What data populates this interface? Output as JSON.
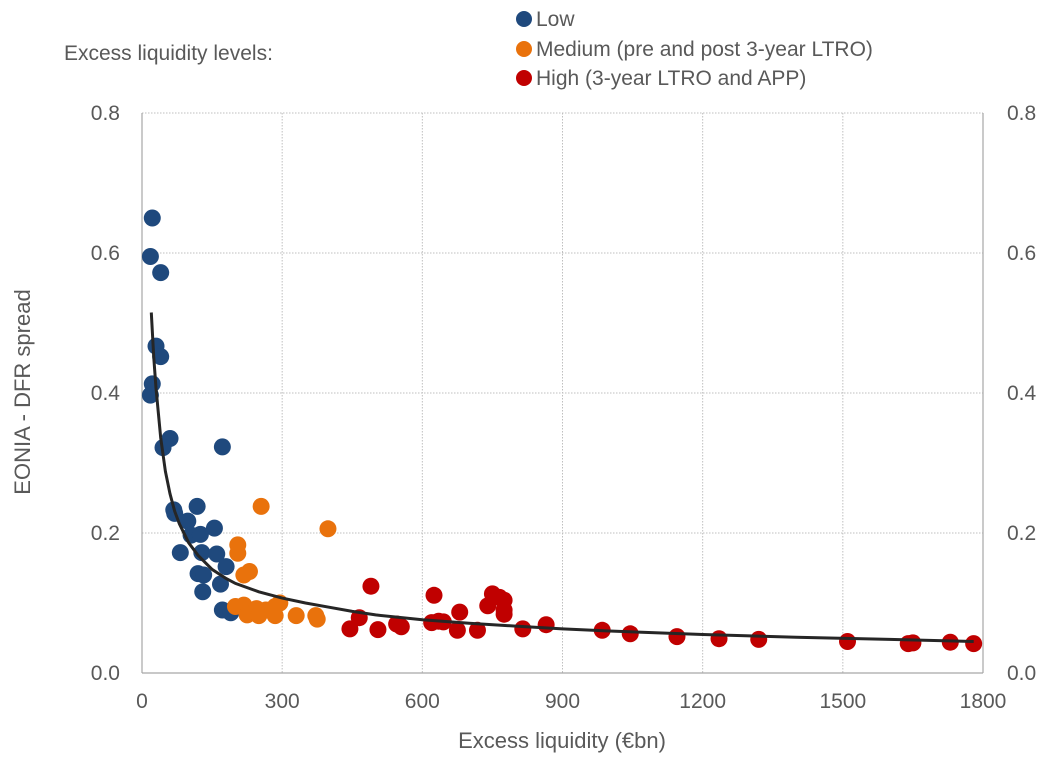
{
  "chart_data": {
    "type": "scatter",
    "legend_title": "Excess liquidity levels:",
    "legend_position": "top",
    "xlabel": "Excess liquidity (€bn)",
    "ylabel": "EONIA - DFR spread",
    "xlim": [
      0,
      1800
    ],
    "ylim": [
      0,
      0.8
    ],
    "x_ticks": [
      "0",
      "300",
      "600",
      "900",
      "1200",
      "1500",
      "1800"
    ],
    "y_ticks": [
      "0.0",
      "0.2",
      "0.4",
      "0.6",
      "0.8"
    ],
    "y2_ticks": [
      "0.0",
      "0.2",
      "0.4",
      "0.6",
      "0.8"
    ],
    "grid": true,
    "series": [
      {
        "name": "Low",
        "color": "#1f497d",
        "points": [
          [
            22,
            0.65
          ],
          [
            18,
            0.595
          ],
          [
            40,
            0.572
          ],
          [
            30,
            0.467
          ],
          [
            40,
            0.452
          ],
          [
            22,
            0.413
          ],
          [
            18,
            0.397
          ],
          [
            60,
            0.335
          ],
          [
            45,
            0.322
          ],
          [
            172,
            0.323
          ],
          [
            68,
            0.233
          ],
          [
            70,
            0.228
          ],
          [
            118,
            0.238
          ],
          [
            98,
            0.217
          ],
          [
            155,
            0.207
          ],
          [
            105,
            0.197
          ],
          [
            125,
            0.198
          ],
          [
            82,
            0.172
          ],
          [
            128,
            0.172
          ],
          [
            160,
            0.17
          ],
          [
            180,
            0.152
          ],
          [
            120,
            0.142
          ],
          [
            132,
            0.14
          ],
          [
            168,
            0.127
          ],
          [
            130,
            0.116
          ],
          [
            172,
            0.09
          ],
          [
            190,
            0.086
          ]
        ]
      },
      {
        "name": "Medium (pre and post 3-year LTRO)",
        "color": "#e9720c",
        "points": [
          [
            255,
            0.238
          ],
          [
            398,
            0.206
          ],
          [
            205,
            0.183
          ],
          [
            205,
            0.171
          ],
          [
            230,
            0.145
          ],
          [
            218,
            0.14
          ],
          [
            200,
            0.095
          ],
          [
            218,
            0.097
          ],
          [
            245,
            0.092
          ],
          [
            265,
            0.09
          ],
          [
            285,
            0.095
          ],
          [
            295,
            0.1
          ],
          [
            225,
            0.083
          ],
          [
            250,
            0.082
          ],
          [
            285,
            0.082
          ],
          [
            330,
            0.082
          ],
          [
            372,
            0.082
          ],
          [
            375,
            0.077
          ]
        ]
      },
      {
        "name": "High (3-year LTRO and APP)",
        "color": "#c00000",
        "points": [
          [
            490,
            0.124
          ],
          [
            625,
            0.111
          ],
          [
            750,
            0.113
          ],
          [
            765,
            0.108
          ],
          [
            775,
            0.104
          ],
          [
            740,
            0.096
          ],
          [
            775,
            0.09
          ],
          [
            680,
            0.087
          ],
          [
            775,
            0.084
          ],
          [
            465,
            0.079
          ],
          [
            545,
            0.07
          ],
          [
            620,
            0.072
          ],
          [
            635,
            0.074
          ],
          [
            645,
            0.073
          ],
          [
            865,
            0.069
          ],
          [
            445,
            0.063
          ],
          [
            505,
            0.062
          ],
          [
            555,
            0.066
          ],
          [
            675,
            0.061
          ],
          [
            718,
            0.061
          ],
          [
            815,
            0.063
          ],
          [
            985,
            0.061
          ],
          [
            1045,
            0.056
          ],
          [
            1145,
            0.052
          ],
          [
            1235,
            0.049
          ],
          [
            1320,
            0.048
          ],
          [
            1510,
            0.045
          ],
          [
            1640,
            0.042
          ],
          [
            1650,
            0.043
          ],
          [
            1730,
            0.044
          ],
          [
            1780,
            0.042
          ]
        ]
      }
    ],
    "trendline": {
      "color": "#262626",
      "points": [
        [
          20,
          0.515
        ],
        [
          25,
          0.452
        ],
        [
          30,
          0.407
        ],
        [
          40,
          0.336
        ],
        [
          50,
          0.288
        ],
        [
          60,
          0.256
        ],
        [
          70,
          0.231
        ],
        [
          80,
          0.213
        ],
        [
          100,
          0.186
        ],
        [
          120,
          0.168
        ],
        [
          150,
          0.148
        ],
        [
          180,
          0.135
        ],
        [
          200,
          0.128
        ],
        [
          250,
          0.116
        ],
        [
          300,
          0.107
        ],
        [
          350,
          0.1
        ],
        [
          400,
          0.094
        ],
        [
          450,
          0.088
        ],
        [
          500,
          0.083
        ],
        [
          600,
          0.076
        ],
        [
          700,
          0.071
        ],
        [
          800,
          0.067
        ],
        [
          900,
          0.063
        ],
        [
          1000,
          0.06
        ],
        [
          1200,
          0.055
        ],
        [
          1400,
          0.051
        ],
        [
          1600,
          0.048
        ],
        [
          1780,
          0.045
        ]
      ]
    }
  }
}
